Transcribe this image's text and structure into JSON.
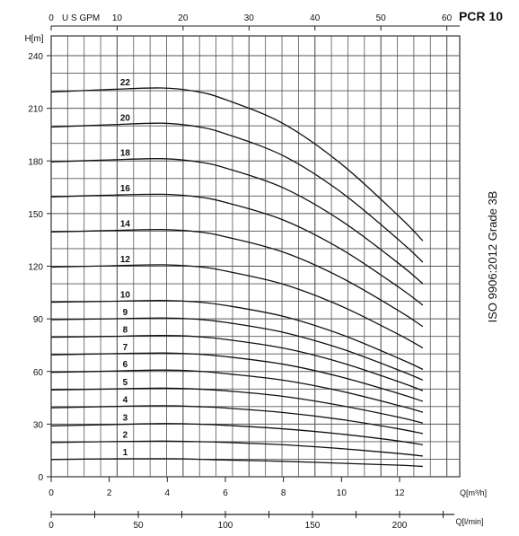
{
  "title": "PCR 10",
  "side_label": "ISO  9906:2012   Grade 3B",
  "chart_data": {
    "type": "line",
    "y_axis": {
      "label": "H[m]",
      "ticks": [
        0,
        30,
        60,
        90,
        120,
        150,
        180,
        210,
        240
      ],
      "range": [
        0,
        245
      ]
    },
    "x_axis_m3h": {
      "label": "Q[m³/h]",
      "ticks": [
        0,
        2,
        4,
        6,
        8,
        10,
        12
      ],
      "range": [
        0,
        13.6
      ]
    },
    "x_axis_gpm": {
      "label": "U S GPM",
      "ticks": [
        0,
        10,
        20,
        30,
        40,
        50,
        60
      ]
    },
    "x_axis_lmin": {
      "label": "Q[l/min]",
      "ticks": [
        0,
        50,
        100,
        150,
        200
      ]
    },
    "grid": true,
    "series": [
      {
        "name": "1",
        "points": [
          [
            0,
            9.8
          ],
          [
            2,
            10.2
          ],
          [
            3.8,
            10.3
          ],
          [
            5,
            10
          ],
          [
            6,
            9.5
          ],
          [
            8,
            8.8
          ],
          [
            10,
            7.7
          ],
          [
            12,
            6.6
          ],
          [
            12.8,
            5.9
          ]
        ]
      },
      {
        "name": "2",
        "points": [
          [
            0,
            19.5
          ],
          [
            2,
            20
          ],
          [
            3.8,
            20.3
          ],
          [
            5,
            20
          ],
          [
            6,
            19.6
          ],
          [
            8,
            18.2
          ],
          [
            10,
            16
          ],
          [
            12,
            13.2
          ],
          [
            12.8,
            11.8
          ]
        ]
      },
      {
        "name": "3",
        "points": [
          [
            0,
            29
          ],
          [
            2,
            29.7
          ],
          [
            3.8,
            30.3
          ],
          [
            5,
            30
          ],
          [
            6,
            29.3
          ],
          [
            8,
            27.3
          ],
          [
            10,
            24.3
          ],
          [
            12,
            20.3
          ],
          [
            12.8,
            18.2
          ]
        ]
      },
      {
        "name": "4",
        "points": [
          [
            0,
            39.3
          ],
          [
            2,
            40
          ],
          [
            3.8,
            40.5
          ],
          [
            5,
            40
          ],
          [
            6,
            39.2
          ],
          [
            8,
            36.6
          ],
          [
            10,
            32.6
          ],
          [
            12,
            27.2
          ],
          [
            12.8,
            24.6
          ]
        ]
      },
      {
        "name": "5",
        "points": [
          [
            0,
            49.5
          ],
          [
            2,
            50
          ],
          [
            3.8,
            50.5
          ],
          [
            5,
            50
          ],
          [
            6,
            49
          ],
          [
            8,
            45.8
          ],
          [
            10,
            40.5
          ],
          [
            12,
            33.8
          ],
          [
            12.8,
            30.6
          ]
        ]
      },
      {
        "name": "6",
        "points": [
          [
            0,
            59.5
          ],
          [
            2,
            60.2
          ],
          [
            3.8,
            60.8
          ],
          [
            5,
            60.2
          ],
          [
            6,
            58.8
          ],
          [
            8,
            55
          ],
          [
            10,
            48.7
          ],
          [
            12,
            40.5
          ],
          [
            12.8,
            36.8
          ]
        ]
      },
      {
        "name": "7",
        "points": [
          [
            0,
            69.5
          ],
          [
            2,
            70.1
          ],
          [
            3.8,
            70.5
          ],
          [
            5,
            69.9
          ],
          [
            6,
            68.5
          ],
          [
            8,
            64.1
          ],
          [
            10,
            56.8
          ],
          [
            12,
            47.3
          ],
          [
            12.8,
            43
          ]
        ]
      },
      {
        "name": "8",
        "points": [
          [
            0,
            79.5
          ],
          [
            2,
            80
          ],
          [
            3.8,
            80.5
          ],
          [
            5,
            79.9
          ],
          [
            6,
            78.3
          ],
          [
            8,
            73.3
          ],
          [
            10,
            65
          ],
          [
            12,
            54
          ],
          [
            12.8,
            49.1
          ]
        ]
      },
      {
        "name": "9",
        "points": [
          [
            0,
            89.5
          ],
          [
            2,
            90
          ],
          [
            3.8,
            90.5
          ],
          [
            5,
            89.8
          ],
          [
            6,
            88
          ],
          [
            8,
            82.3
          ],
          [
            10,
            72.9
          ],
          [
            12,
            60.6
          ],
          [
            12.8,
            55.1
          ]
        ]
      },
      {
        "name": "10",
        "points": [
          [
            0,
            99.5
          ],
          [
            2,
            100
          ],
          [
            3.8,
            100.5
          ],
          [
            5,
            99.7
          ],
          [
            6,
            97.7
          ],
          [
            8,
            91.4
          ],
          [
            10,
            81
          ],
          [
            12,
            67.3
          ],
          [
            12.8,
            61.2
          ]
        ]
      },
      {
        "name": "12",
        "points": [
          [
            0,
            119.5
          ],
          [
            2,
            120.2
          ],
          [
            3.8,
            120.8
          ],
          [
            5,
            119.8
          ],
          [
            6,
            117.3
          ],
          [
            8,
            109.7
          ],
          [
            10,
            97.2
          ],
          [
            12,
            80.8
          ],
          [
            12.8,
            73.4
          ]
        ]
      },
      {
        "name": "14",
        "points": [
          [
            0,
            139.5
          ],
          [
            2,
            140.3
          ],
          [
            3.8,
            140.9
          ],
          [
            5,
            139.7
          ],
          [
            6,
            136.8
          ],
          [
            8,
            128
          ],
          [
            10,
            113.4
          ],
          [
            12,
            94.3
          ],
          [
            12.8,
            85.6
          ]
        ]
      },
      {
        "name": "16",
        "points": [
          [
            0,
            159.5
          ],
          [
            2,
            160.5
          ],
          [
            3.8,
            161
          ],
          [
            5,
            159.6
          ],
          [
            6,
            156.4
          ],
          [
            8,
            146.3
          ],
          [
            10,
            129.6
          ],
          [
            12,
            107.7
          ],
          [
            12.8,
            97.8
          ]
        ]
      },
      {
        "name": "18",
        "points": [
          [
            0,
            179.4
          ],
          [
            2,
            180.6
          ],
          [
            3.8,
            181.3
          ],
          [
            5,
            179.6
          ],
          [
            6,
            176
          ],
          [
            8,
            164.6
          ],
          [
            10,
            145.8
          ],
          [
            12,
            121.2
          ],
          [
            12.8,
            110
          ]
        ]
      },
      {
        "name": "20",
        "points": [
          [
            0,
            199.3
          ],
          [
            2,
            200.6
          ],
          [
            3.8,
            201.5
          ],
          [
            5,
            199.6
          ],
          [
            6,
            195.5
          ],
          [
            8,
            182.9
          ],
          [
            10,
            162
          ],
          [
            12,
            134.6
          ],
          [
            12.8,
            122.3
          ]
        ]
      },
      {
        "name": "22",
        "points": [
          [
            0,
            219.3
          ],
          [
            2,
            220.7
          ],
          [
            3.8,
            221.6
          ],
          [
            5,
            219.6
          ],
          [
            6,
            215
          ],
          [
            8,
            201.2
          ],
          [
            10,
            178.2
          ],
          [
            12,
            148.1
          ],
          [
            12.8,
            134.5
          ]
        ]
      }
    ],
    "series_label_x": 2.55
  }
}
